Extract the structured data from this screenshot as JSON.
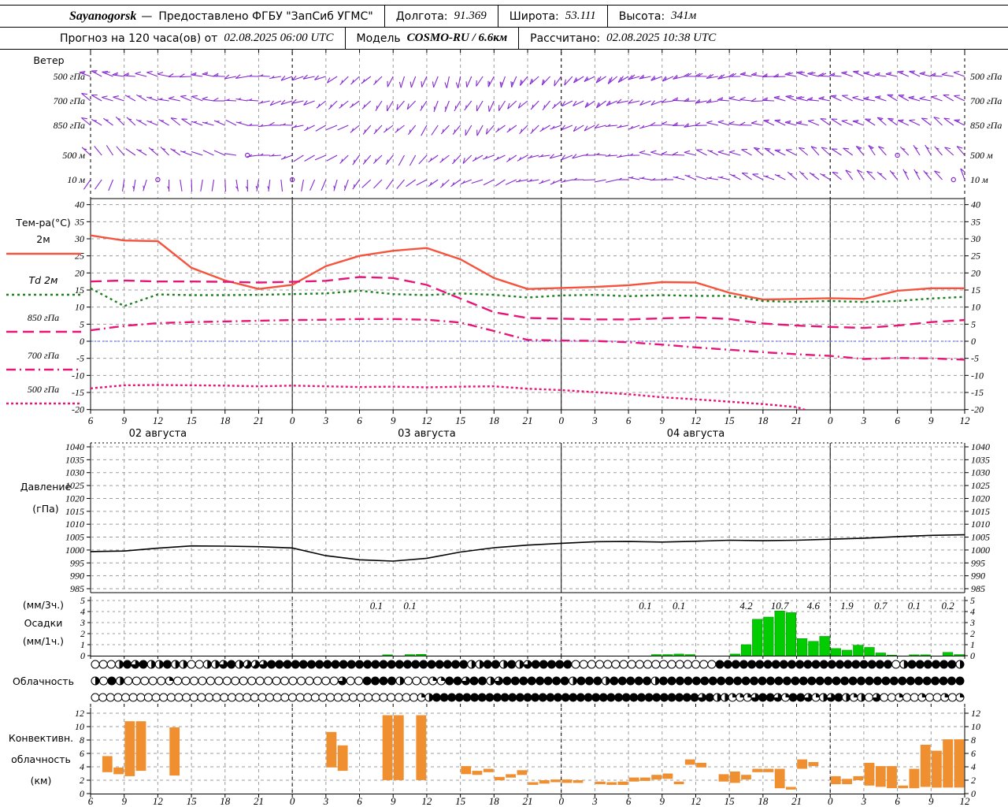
{
  "header": {
    "station": "Sayanogorsk",
    "dash": "—",
    "provider": "Предоставлено ФГБУ \"ЗапСиб УГМС\"",
    "lon_label": "Долгота:",
    "lon_value": "91.369",
    "lat_label": "Широта:",
    "lat_value": "53.111",
    "alt_label": "Высота:",
    "alt_value": "341м",
    "forecast_label": "Прогноз на 120 часа(ов) от",
    "forecast_run": "02.08.2025 06:00 UTC",
    "model_label": "Модель",
    "model_value": "COSMO-RU / 6.6км",
    "calc_label": "Рассчитано:",
    "calc_value": "02.08.2025 10:38 UTC"
  },
  "panels": {
    "temp_title": "Тем-ра(°C)",
    "pressure_title_1": "Давление",
    "pressure_title_2": "(гПа)",
    "precip_label_1": "(мм/3ч.)",
    "precip_label_2": "Осадки",
    "precip_label_3": "(мм/1ч.)",
    "cloud_title": "Облачность",
    "conv_title_1": "Конвективн.",
    "conv_title_2": "облачность",
    "conv_title_3": "(км)"
  },
  "chart_data": {
    "type": "meteogram",
    "time_axis": {
      "hour_labels": [
        "6",
        "9",
        "12",
        "15",
        "18",
        "21",
        "0",
        "3",
        "6",
        "9",
        "12",
        "15",
        "18",
        "21",
        "0",
        "3",
        "6",
        "9",
        "12",
        "15",
        "18",
        "21",
        "0",
        "3",
        "6",
        "9",
        "12"
      ],
      "step_hours": 3,
      "day_labels": [
        {
          "text": "02 августа",
          "tick": 2
        },
        {
          "text": "03 августа",
          "tick": 10
        },
        {
          "text": "04 августа",
          "tick": 18
        }
      ],
      "day_line_ticks": [
        6,
        14,
        22
      ]
    },
    "wind": {
      "title": "Ветер",
      "color": "#8427cf",
      "levels": [
        "500 гПа",
        "700 гПа",
        "850 гПа",
        "500 м",
        "10 м"
      ],
      "series": [
        {
          "level": "500 гПа",
          "keys": [
            [
              0,
              290,
              18
            ],
            [
              9,
              275,
              14
            ],
            [
              18,
              260,
              10
            ],
            [
              24,
              230,
              10
            ],
            [
              30,
              195,
              12
            ],
            [
              36,
              205,
              15
            ],
            [
              45,
              235,
              18
            ],
            [
              54,
              262,
              22
            ],
            [
              63,
              278,
              20
            ],
            [
              72,
              288,
              18
            ],
            [
              78,
              282,
              15
            ]
          ]
        },
        {
          "level": "700 гПа",
          "keys": [
            [
              0,
              300,
              12
            ],
            [
              12,
              280,
              10
            ],
            [
              24,
              225,
              8
            ],
            [
              33,
              205,
              10
            ],
            [
              42,
              232,
              12
            ],
            [
              51,
              258,
              15
            ],
            [
              63,
              283,
              18
            ],
            [
              72,
              292,
              16
            ],
            [
              78,
              290,
              14
            ]
          ]
        },
        {
          "level": "850 гПа",
          "keys": [
            [
              0,
              312,
              8
            ],
            [
              12,
              292,
              8
            ],
            [
              24,
              232,
              6
            ],
            [
              33,
              212,
              8
            ],
            [
              45,
              250,
              10
            ],
            [
              57,
              278,
              14
            ],
            [
              69,
              300,
              17
            ],
            [
              78,
              305,
              15
            ]
          ]
        },
        {
          "level": "500 м",
          "keys": [
            [
              0,
              322,
              6
            ],
            [
              9,
              300,
              5
            ],
            [
              18,
              252,
              5
            ],
            [
              27,
              212,
              6
            ],
            [
              36,
              240,
              8
            ],
            [
              48,
              270,
              10
            ],
            [
              60,
              300,
              14
            ],
            [
              72,
              320,
              12
            ],
            [
              78,
              322,
              10
            ]
          ]
        },
        {
          "level": "10 м",
          "keys": [
            [
              0,
              210,
              5
            ],
            [
              7,
              182,
              4
            ],
            [
              17,
              180,
              4
            ],
            [
              26,
              222,
              3
            ],
            [
              33,
              240,
              5
            ],
            [
              45,
              262,
              6
            ],
            [
              57,
              290,
              8
            ],
            [
              69,
              318,
              10
            ],
            [
              78,
              330,
              8
            ]
          ]
        }
      ],
      "calm": [
        [
          3,
          14
        ],
        [
          3,
          72
        ],
        [
          4,
          6
        ],
        [
          4,
          18
        ],
        [
          4,
          77
        ]
      ]
    },
    "temperature": {
      "ticks": [
        40,
        35,
        30,
        25,
        20,
        15,
        10,
        5,
        0,
        -5,
        -10,
        -15,
        -20
      ],
      "zero_line_color": "#4040ff",
      "series": [
        {
          "name": "2м",
          "color": "#f5533d",
          "dash": "",
          "values": [
            31,
            29.5,
            29.3,
            21.5,
            17.8,
            15.3,
            16.5,
            22,
            25,
            26.5,
            27.3,
            24,
            18.5,
            15.3,
            15.6,
            15.9,
            16.4,
            17.3,
            17.2,
            14.2,
            12.2,
            12.4,
            12.6,
            12.4,
            14.8,
            15.5,
            15.5
          ]
        },
        {
          "name": "Td  2м",
          "color": "#1e8020",
          "dash": "3 4",
          "values": [
            15.5,
            10.3,
            13.7,
            13.5,
            13.5,
            13.6,
            13.8,
            14,
            14.8,
            13.8,
            13.5,
            14,
            13.6,
            12.8,
            13.4,
            13.6,
            13.2,
            13.5,
            13.3,
            13.3,
            11.8,
            11.5,
            11.8,
            11.5,
            11.8,
            12.5,
            13
          ]
        },
        {
          "name": "850 гПа",
          "color": "#e81578",
          "dash": "14 7",
          "values": [
            17.5,
            17.8,
            17.5,
            17.5,
            17.4,
            17.2,
            17.4,
            17.7,
            18.8,
            18.5,
            16.5,
            12.5,
            8.5,
            6.8,
            6.6,
            6.4,
            6.4,
            6.7,
            7,
            6.5,
            5.2,
            4.6,
            4.2,
            3.9,
            4.6,
            5.6,
            6.2
          ]
        },
        {
          "name": "700 гПа",
          "color": "#e81578",
          "dash": "12 5 2 5",
          "values": [
            3.2,
            4.5,
            5.3,
            5.6,
            5.8,
            6,
            6.2,
            6.3,
            6.5,
            6.5,
            6.3,
            5.5,
            3,
            0.4,
            0.2,
            0.1,
            -0.3,
            -1,
            -1.8,
            -2.5,
            -3.2,
            -3.8,
            -4.3,
            -5.2,
            -4.9,
            -5,
            -5.4
          ]
        },
        {
          "name": "500 гПа",
          "color": "#e81578",
          "dash": "3 3",
          "values": [
            -13.8,
            -12.9,
            -12.8,
            -12.9,
            -13,
            -13.2,
            -13,
            -13.2,
            -13.4,
            -13.3,
            -13.5,
            -13.3,
            -13.2,
            -13.9,
            -14.3,
            -14.9,
            -15.5,
            -16.4,
            -17,
            -17.7,
            -18.4,
            -19.3,
            null,
            null,
            null,
            null,
            null
          ]
        }
      ]
    },
    "pressure": {
      "ticks": [
        1040,
        1035,
        1030,
        1025,
        1020,
        1015,
        1010,
        1005,
        1000,
        995,
        990,
        985
      ],
      "color": "#000000",
      "values": [
        999.4,
        999.6,
        1000.7,
        1001.6,
        1001.5,
        1001.3,
        1000.8,
        997.8,
        996.2,
        995.7,
        996.8,
        999.2,
        1000.9,
        1001.9,
        1002.6,
        1003.2,
        1003.3,
        1003.1,
        1003.4,
        1003.8,
        1003.6,
        1003.8,
        1004.2,
        1004.6,
        1005.2,
        1005.7,
        1005.9
      ]
    },
    "precip": {
      "ticks": [
        5,
        4,
        3,
        2,
        1,
        0
      ],
      "color": "#00cc00",
      "hourly": [
        [
          26,
          0.08
        ],
        [
          28,
          0.1
        ],
        [
          29,
          0.12
        ],
        [
          50,
          0.1
        ],
        [
          51,
          0.1
        ],
        [
          52,
          0.15
        ],
        [
          53,
          0.1
        ],
        [
          57,
          0.15
        ],
        [
          58,
          1.0
        ],
        [
          59,
          3.3
        ],
        [
          60,
          3.5
        ],
        [
          61,
          4.05
        ],
        [
          62,
          3.9
        ],
        [
          63,
          1.55
        ],
        [
          64,
          1.3
        ],
        [
          65,
          1.75
        ],
        [
          66,
          0.65
        ],
        [
          67,
          0.5
        ],
        [
          68,
          0.95
        ],
        [
          69,
          0.75
        ],
        [
          70,
          0.25
        ],
        [
          71,
          0.05
        ],
        [
          73,
          0.08
        ],
        [
          74,
          0.08
        ],
        [
          76,
          0.3
        ],
        [
          77,
          0.1
        ]
      ],
      "labels_3h": [
        [
          8,
          "0.1"
        ],
        [
          9,
          "0.1"
        ],
        [
          16,
          "0.1"
        ],
        [
          17,
          "0.1"
        ],
        [
          19,
          "4.2"
        ],
        [
          20,
          "10.7"
        ],
        [
          21,
          "4.6"
        ],
        [
          22,
          "1.9"
        ],
        [
          23,
          "0.7"
        ],
        [
          24,
          "0.1"
        ],
        [
          25,
          "0.2"
        ]
      ]
    },
    "cloud": {
      "rows": [
        "000486844844004468455688888888888888888888888884488484688888000000000000000000888888888888888888888804888888 4",
        "4084000002000000000000000000006008888400022886884688888888488848888848888888888888888888888888888888888888",
        "000000000000000000000000000000000000000000024888888888888888888888888888888888886844222688628862468424060020020020 2"
      ]
    },
    "convective": {
      "ticks": [
        12,
        10,
        8,
        6,
        4,
        2,
        0
      ],
      "color": "#ef8f30",
      "bars": [
        [
          1,
          3.2,
          5.6
        ],
        [
          2,
          2.9,
          3.9
        ],
        [
          3,
          2.6,
          10.8
        ],
        [
          4,
          3.4,
          10.8
        ],
        [
          7,
          2.7,
          9.9
        ],
        [
          21,
          3.9,
          9.2
        ],
        [
          22,
          3.4,
          7.2
        ],
        [
          26,
          2.0,
          11.7
        ],
        [
          27,
          2.0,
          11.7
        ],
        [
          29,
          2.0,
          11.7
        ],
        [
          33,
          2.9,
          4.1
        ],
        [
          34,
          2.8,
          3.4
        ],
        [
          35,
          3.2,
          3.7
        ],
        [
          36,
          2.0,
          2.5
        ],
        [
          37,
          2.4,
          2.9
        ],
        [
          38,
          2.8,
          3.5
        ],
        [
          39,
          1.3,
          1.7
        ],
        [
          40,
          1.5,
          2.0
        ],
        [
          41,
          1.7,
          2.1
        ],
        [
          42,
          1.6,
          2.1
        ],
        [
          43,
          1.6,
          2.0
        ],
        [
          45,
          1.4,
          1.8
        ],
        [
          46,
          1.3,
          1.7
        ],
        [
          47,
          1.3,
          1.8
        ],
        [
          48,
          1.8,
          2.4
        ],
        [
          49,
          1.9,
          2.4
        ],
        [
          50,
          2.1,
          2.8
        ],
        [
          51,
          2.2,
          3.0
        ],
        [
          52,
          1.4,
          1.8
        ],
        [
          53,
          4.3,
          5.1
        ],
        [
          54,
          3.9,
          4.6
        ],
        [
          56,
          1.8,
          2.9
        ],
        [
          57,
          1.6,
          3.3
        ],
        [
          58,
          2.1,
          2.8
        ],
        [
          59,
          3.2,
          3.7
        ],
        [
          60,
          3.2,
          3.7
        ],
        [
          61,
          0.8,
          3.7
        ],
        [
          62,
          0.6,
          1.0
        ],
        [
          63,
          3.7,
          5.1
        ],
        [
          64,
          4.1,
          4.7
        ],
        [
          66,
          1.4,
          2.6
        ],
        [
          67,
          1.4,
          2.2
        ],
        [
          68,
          2.0,
          2.6
        ],
        [
          69,
          1.2,
          4.6
        ],
        [
          70,
          1.0,
          4.1
        ],
        [
          71,
          0.8,
          4.1
        ],
        [
          72,
          0.8,
          1.2
        ],
        [
          73,
          0.8,
          3.7
        ],
        [
          74,
          1.0,
          7.3
        ],
        [
          75,
          0.9,
          6.4
        ],
        [
          76,
          0.9,
          8.1
        ],
        [
          77,
          0.9,
          8.1
        ]
      ]
    }
  }
}
